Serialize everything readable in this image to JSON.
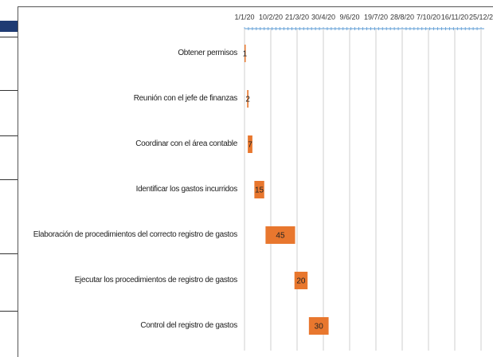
{
  "chart_data": {
    "type": "gantt",
    "categories": [
      "Obtener permisos",
      "Reunión con el jefe de finanzas",
      "Coordinar con el área contable",
      "Identificar los gastos incurridos",
      "Elaboración de procedimientos del correcto registro de gastos",
      "Ejecutar los procedimientos de registro de gastos",
      "Control del registro de gastos"
    ],
    "starts": [
      0,
      4,
      5,
      15,
      32,
      76,
      98
    ],
    "values": [
      1,
      2,
      7,
      15,
      45,
      20,
      30
    ],
    "color": "#e8772e",
    "xlim": [
      0,
      360
    ],
    "xticks": [
      {
        "value": 0,
        "label": "1/1/20"
      },
      {
        "value": 40,
        "label": "10/2/20"
      },
      {
        "value": 80,
        "label": "21/3/20"
      },
      {
        "value": 120,
        "label": "30/4/20"
      },
      {
        "value": 160,
        "label": "9/6/20"
      },
      {
        "value": 200,
        "label": "19/7/20"
      },
      {
        "value": 240,
        "label": "28/8/20"
      },
      {
        "value": 280,
        "label": "7/10/20"
      },
      {
        "value": 320,
        "label": "16/11/20"
      },
      {
        "value": 360,
        "label": "25/12/2"
      }
    ],
    "grid": true
  }
}
